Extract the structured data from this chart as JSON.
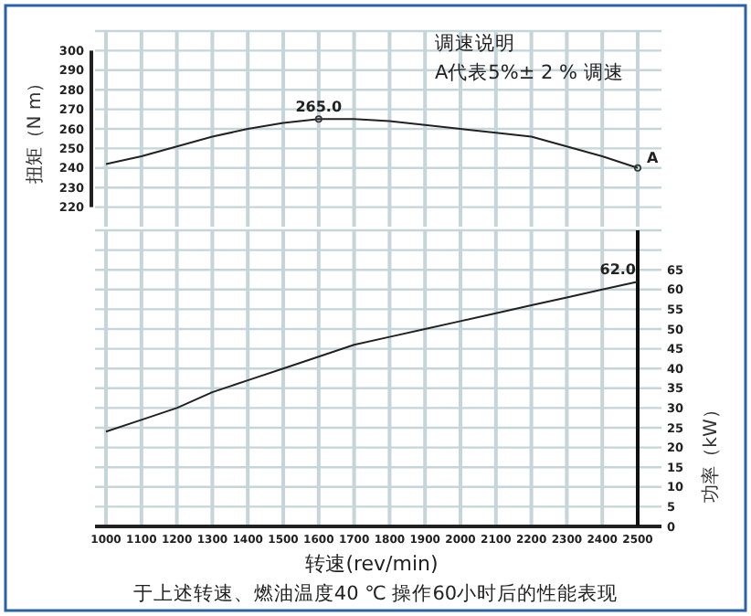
{
  "chart_data": [
    {
      "type": "line",
      "ylabel": "扭矩（N m）",
      "annotations": [
        "调速说明",
        "A代表5%± 2 % 调速",
        {
          "text": "265.0",
          "x": 1600,
          "y": 265
        },
        {
          "text": "A",
          "x": 2500,
          "y": 240
        }
      ],
      "x": [
        1000,
        1100,
        1200,
        1300,
        1400,
        1500,
        1600,
        1700,
        1800,
        1900,
        2000,
        2100,
        2200,
        2300,
        2400,
        2500
      ],
      "series": [
        {
          "color": "#222222",
          "values": [
            242,
            246,
            251,
            256,
            260,
            263,
            265,
            265,
            264,
            262,
            260,
            258,
            256,
            251,
            246,
            240
          ]
        }
      ],
      "xlim": [
        1000,
        2500
      ],
      "xticks": [
        1000,
        1100,
        1200,
        1300,
        1400,
        1500,
        1600,
        1700,
        1800,
        1900,
        2000,
        2100,
        2200,
        2300,
        2400,
        2500
      ],
      "ylim": [
        210,
        310
      ],
      "yticks": [
        220,
        230,
        240,
        250,
        260,
        270,
        280,
        290,
        300
      ],
      "grid": true,
      "tick_labels": "y"
    },
    {
      "type": "line",
      "xlabel": "转速(rev/min)",
      "y2label": "功率（kW）",
      "annotations": [
        "62.0",
        "于上述转速、燃油温度40 ℃ 操作60小时后的性能表现"
      ],
      "x": [
        1000,
        1100,
        1200,
        1300,
        1400,
        1500,
        1600,
        1700,
        1800,
        1900,
        2000,
        2100,
        2200,
        2300,
        2400,
        2500
      ],
      "series": [
        {
          "color": "#222222",
          "axis": "y2",
          "values": [
            24,
            27,
            30,
            34,
            37,
            40,
            43,
            46,
            48,
            50,
            52,
            54,
            56,
            58,
            60,
            62
          ]
        }
      ],
      "xlim": [
        1000,
        2500
      ],
      "xticks": [
        1000,
        1100,
        1200,
        1300,
        1400,
        1500,
        1600,
        1700,
        1800,
        1900,
        2000,
        2100,
        2200,
        2300,
        2400,
        2500
      ],
      "y2lim": [
        0,
        75
      ],
      "y2ticks": [
        0,
        5,
        10,
        15,
        20,
        25,
        30,
        35,
        40,
        45,
        50,
        55,
        60,
        65
      ],
      "grid": true
    }
  ]
}
